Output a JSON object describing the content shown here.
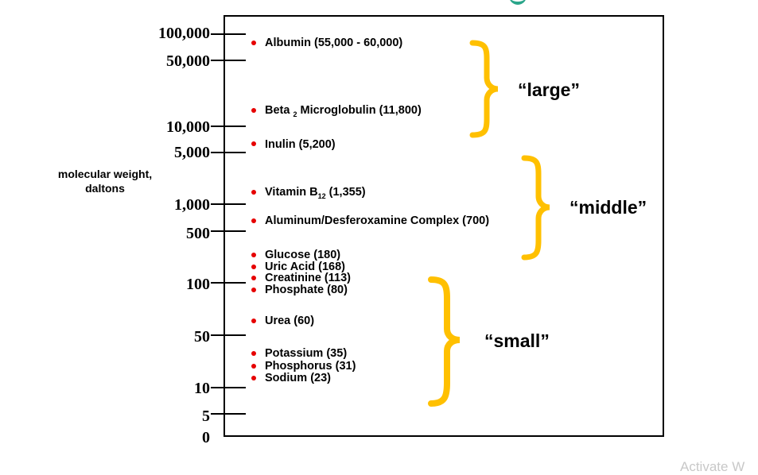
{
  "axis": {
    "title_line1": "molecular weight,",
    "title_line2": "daltons",
    "ticks": [
      "100,000",
      "50,000",
      "10,000",
      "5,000",
      "1,000",
      "500",
      "100",
      "50",
      "10",
      "5",
      "0"
    ]
  },
  "molecules": [
    {
      "name": "Albumin (55,000 - 60,000)"
    },
    {
      "name": "Beta",
      "sub": "2",
      "rest": " Microglobulin (11,800)"
    },
    {
      "name": "Inulin (5,200)"
    },
    {
      "name": "Vitamin B",
      "sub": "12",
      "rest": " (1,355)"
    },
    {
      "name": "Aluminum/Desferoxamine Complex (700)"
    },
    {
      "name": "Glucose (180)"
    },
    {
      "name": "Uric Acid (168)"
    },
    {
      "name": "Creatinine (113)"
    },
    {
      "name": "Phosphate (80)"
    },
    {
      "name": "Urea (60)"
    },
    {
      "name": "Potassium (35)"
    },
    {
      "name": "Phosphorus (31)"
    },
    {
      "name": "Sodium (23)"
    }
  ],
  "groups": {
    "large": "“large”",
    "middle": "“middle”",
    "small": "“small”"
  },
  "colors": {
    "dot": "#e60000",
    "brace": "#ffc000",
    "accent": "#2aa58a"
  },
  "watermark": "Activate W"
}
